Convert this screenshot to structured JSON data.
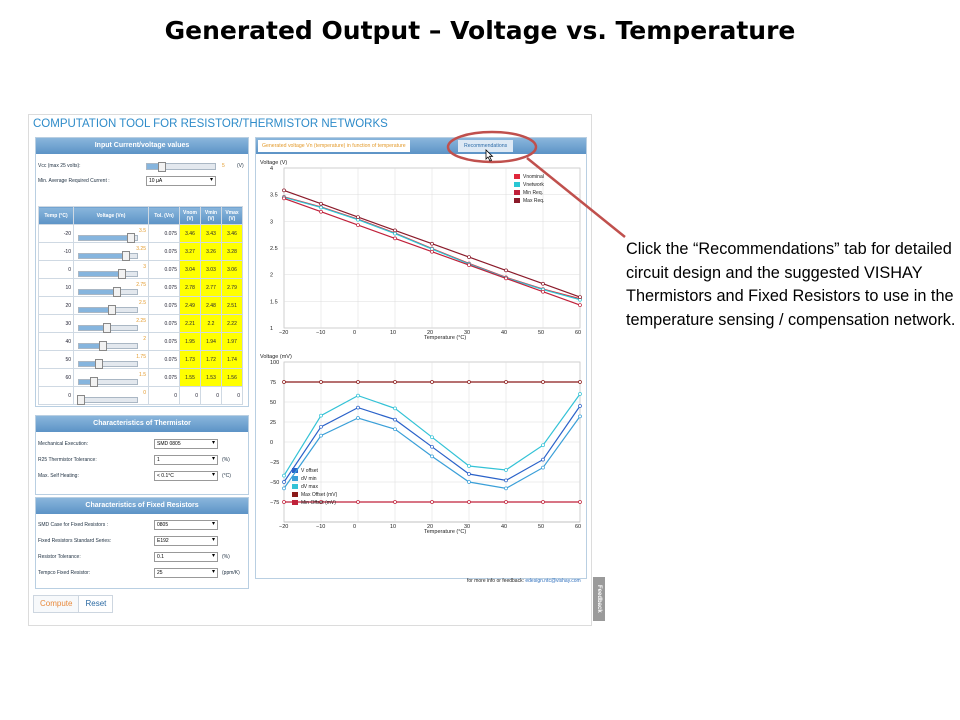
{
  "slide": {
    "title": "Generated Output – Voltage vs. Temperature",
    "callout": "Click the “Recommendations” tab for detailed circuit design and the suggested VISHAY Thermistors and Fixed Resistors to use in the temperature sensing / compensation network."
  },
  "app": {
    "title": "COMPUTATION TOOL FOR RESISTOR/THERMISTOR NETWORKS",
    "input_panel": {
      "header": "Input Current/voltage values",
      "vcc_label": "Vcc (max 25 volts):",
      "vcc_value": "5",
      "vcc_unit": "(V)",
      "vcc_level": 0.2,
      "current_label": "Min. Average Required Current :",
      "current_value": "10 µA",
      "columns": [
        "Temp (°C)",
        "Voltage (Vn)",
        "Tol. (Vn)",
        "Vnom",
        "Vmin",
        "Vmax"
      ],
      "units": [
        "(V)",
        "(V)",
        "(V)"
      ],
      "rows": [
        {
          "temp": "-20",
          "voltage": "3.5",
          "tol": "0.075",
          "vnom": "3.46",
          "vmin": "3.43",
          "vmax": "3.46",
          "level": 0.88
        },
        {
          "temp": "-10",
          "voltage": "3.25",
          "tol": "0.075",
          "vnom": "3.27",
          "vmin": "3.26",
          "vmax": "3.28",
          "level": 0.8
        },
        {
          "temp": "0",
          "voltage": "3",
          "tol": "0.075",
          "vnom": "3.04",
          "vmin": "3.03",
          "vmax": "3.06",
          "level": 0.72
        },
        {
          "temp": "10",
          "voltage": "2.75",
          "tol": "0.075",
          "vnom": "2.78",
          "vmin": "2.77",
          "vmax": "2.79",
          "level": 0.63
        },
        {
          "temp": "20",
          "voltage": "2.5",
          "tol": "0.075",
          "vnom": "2.49",
          "vmin": "2.48",
          "vmax": "2.51",
          "level": 0.55
        },
        {
          "temp": "30",
          "voltage": "2.25",
          "tol": "0.075",
          "vnom": "2.21",
          "vmin": "2.2",
          "vmax": "2.22",
          "level": 0.47
        },
        {
          "temp": "40",
          "voltage": "2",
          "tol": "0.075",
          "vnom": "1.95",
          "vmin": "1.94",
          "vmax": "1.97",
          "level": 0.4
        },
        {
          "temp": "50",
          "voltage": "1.75",
          "tol": "0.075",
          "vnom": "1.73",
          "vmin": "1.72",
          "vmax": "1.74",
          "level": 0.32
        },
        {
          "temp": "60",
          "voltage": "1.5",
          "tol": "0.075",
          "vnom": "1.55",
          "vmin": "1.53",
          "vmax": "1.56",
          "level": 0.24
        },
        {
          "temp": "0",
          "voltage": "0",
          "tol": "0",
          "vnom": "0",
          "vmin": "0",
          "vmax": "0",
          "level": 0.02
        }
      ]
    },
    "thermistor_panel": {
      "header": "Characteristics of Thermistor",
      "fields": [
        {
          "label": "Mechanical Execution:",
          "value": "SMD 0805",
          "unit": ""
        },
        {
          "label": "R25 Thermistor Tolerance:",
          "value": "1",
          "unit": "(%)"
        },
        {
          "label": "Max. Self Heating:",
          "value": "< 0.1°C",
          "unit": "(°C)"
        }
      ]
    },
    "resistor_panel": {
      "header": "Characteristics of Fixed Resistors",
      "fields": [
        {
          "label": "SMD Case for Fixed Resistors :",
          "value": "0805",
          "unit": ""
        },
        {
          "label": "Fixed Resistors Standard Series:",
          "value": "E192",
          "unit": ""
        },
        {
          "label": "Resistor Tolerance:",
          "value": "0.1",
          "unit": "(%)"
        },
        {
          "label": "Tempco Fixed Resistor:",
          "value": "25",
          "unit": "(ppm/K)"
        }
      ]
    },
    "buttons": {
      "compute": "Compute",
      "reset": "Reset"
    },
    "tabs": {
      "generated": "Generated voltage Vn (temperature) in function of temperature",
      "recommendations": "Recommendations"
    },
    "footer": {
      "text": "for more info or feedback:",
      "email": "edesign.ntc@vishay.com"
    },
    "feedback": "Feedback"
  },
  "colors": {
    "brand_blue": "#2e8bc9",
    "header_blue": "#5c93c6",
    "highlight_yellow": "#ffff00",
    "callout_red": "#c0504d"
  },
  "chart_data": [
    {
      "type": "line",
      "ylabel": "Voltage (V)",
      "xlabel": "Temperature (°C)",
      "x": [
        -20,
        -10,
        0,
        10,
        20,
        30,
        40,
        50,
        60
      ],
      "xlim": [
        -20,
        60
      ],
      "ylim": [
        1,
        4
      ],
      "yticks": [
        "1",
        "1.5",
        "2",
        "2.5",
        "3",
        "3.5",
        "4"
      ],
      "xticks": [
        "−20",
        "−10",
        "0",
        "10",
        "20",
        "30",
        "40",
        "50",
        "60"
      ],
      "grid": true,
      "legend": "top-right",
      "series": [
        {
          "name": "Vnominal",
          "color": "#e0283b",
          "values": [
            3.46,
            3.27,
            3.04,
            2.78,
            2.49,
            2.21,
            1.95,
            1.73,
            1.55
          ]
        },
        {
          "name": "Vnetwork",
          "color": "#29c7d4",
          "values": [
            3.45,
            3.26,
            3.03,
            2.77,
            2.48,
            2.2,
            1.94,
            1.72,
            1.53
          ]
        },
        {
          "name": "Min Req.",
          "color": "#c0213a",
          "values": [
            3.43,
            3.18,
            2.93,
            2.68,
            2.43,
            2.18,
            1.93,
            1.68,
            1.43
          ]
        },
        {
          "name": "Max Req.",
          "color": "#8b1a2a",
          "values": [
            3.58,
            3.33,
            3.08,
            2.83,
            2.58,
            2.33,
            2.08,
            1.83,
            1.58
          ]
        }
      ]
    },
    {
      "type": "line",
      "ylabel": "Voltage (mV)",
      "xlabel": "Temperature (°C)",
      "x": [
        -20,
        -10,
        0,
        10,
        20,
        30,
        40,
        50,
        60
      ],
      "xlim": [
        -20,
        60
      ],
      "ylim": [
        -100,
        100
      ],
      "yticks": [
        "−75",
        "−50",
        "−25",
        "0",
        "25",
        "50",
        "75",
        "100"
      ],
      "xticks": [
        "−20",
        "−10",
        "0",
        "10",
        "20",
        "30",
        "40",
        "50",
        "60"
      ],
      "grid": true,
      "legend": "bottom-left",
      "series": [
        {
          "name": "V offset",
          "color": "#2a62c9",
          "values": [
            -50,
            19,
            43,
            28,
            -6,
            -40,
            -48,
            -22,
            45
          ]
        },
        {
          "name": "dV min",
          "color": "#3a9fd8",
          "values": [
            -58,
            8,
            30,
            16,
            -18,
            -50,
            -58,
            -32,
            32
          ]
        },
        {
          "name": "dV max",
          "color": "#33c2d6",
          "values": [
            -42,
            33,
            58,
            42,
            6,
            -30,
            -35,
            -4,
            60
          ]
        },
        {
          "name": "Max Offset (mV)",
          "color": "#8b1a1a",
          "values": [
            75,
            75,
            75,
            75,
            75,
            75,
            75,
            75,
            75
          ]
        },
        {
          "name": "Min Offset (mV)",
          "color": "#c0213a",
          "values": [
            -75,
            -75,
            -75,
            -75,
            -75,
            -75,
            -75,
            -75,
            -75
          ]
        }
      ]
    }
  ]
}
